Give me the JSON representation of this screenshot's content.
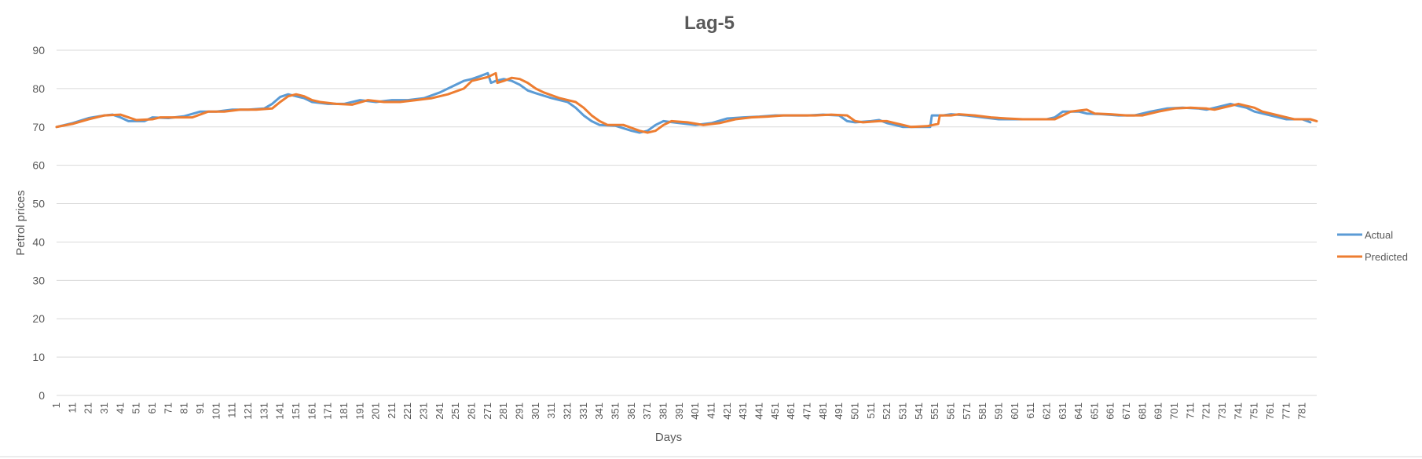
{
  "chart_data": {
    "type": "line",
    "title": "Lag-5",
    "xlabel": "Days",
    "ylabel": "Petrol prices",
    "ylim": [
      0,
      90
    ],
    "yticks": [
      "0",
      "10",
      "20",
      "30",
      "40",
      "50",
      "60",
      "70",
      "80",
      "90"
    ],
    "x_range": [
      1,
      786
    ],
    "xticks": [
      "1",
      "11",
      "21",
      "31",
      "41",
      "51",
      "61",
      "71",
      "81",
      "91",
      "101",
      "111",
      "121",
      "131",
      "141",
      "151",
      "161",
      "171",
      "181",
      "191",
      "201",
      "211",
      "221",
      "231",
      "241",
      "251",
      "261",
      "271",
      "281",
      "291",
      "301",
      "311",
      "321",
      "331",
      "341",
      "351",
      "361",
      "371",
      "381",
      "391",
      "401",
      "411",
      "421",
      "431",
      "441",
      "451",
      "461",
      "471",
      "481",
      "491",
      "501",
      "511",
      "521",
      "531",
      "541",
      "551",
      "561",
      "571",
      "581",
      "591",
      "601",
      "611",
      "621",
      "631",
      "641",
      "651",
      "661",
      "671",
      "681",
      "691",
      "701",
      "711",
      "721",
      "731",
      "741",
      "751",
      "761",
      "771",
      "781"
    ],
    "grid": true,
    "legend_position": "right",
    "series": [
      {
        "name": "Actual",
        "color": "#5B9BD5",
        "points": [
          [
            1,
            70
          ],
          [
            11,
            71
          ],
          [
            21,
            72.3
          ],
          [
            31,
            73
          ],
          [
            36,
            73.2
          ],
          [
            41,
            72.5
          ],
          [
            46,
            71.5
          ],
          [
            56,
            71.5
          ],
          [
            61,
            72.5
          ],
          [
            71,
            72.3
          ],
          [
            81,
            72.8
          ],
          [
            91,
            74
          ],
          [
            101,
            74
          ],
          [
            111,
            74.5
          ],
          [
            121,
            74.5
          ],
          [
            131,
            74.8
          ],
          [
            136,
            76
          ],
          [
            141,
            77.8
          ],
          [
            146,
            78.5
          ],
          [
            151,
            78
          ],
          [
            156,
            77.5
          ],
          [
            161,
            76.5
          ],
          [
            171,
            76
          ],
          [
            181,
            76
          ],
          [
            191,
            77
          ],
          [
            201,
            76.5
          ],
          [
            211,
            77
          ],
          [
            221,
            77
          ],
          [
            231,
            77.5
          ],
          [
            241,
            79
          ],
          [
            251,
            81
          ],
          [
            256,
            82
          ],
          [
            261,
            82.5
          ],
          [
            266,
            83.2
          ],
          [
            271,
            84
          ],
          [
            273,
            81.5
          ],
          [
            276,
            82
          ],
          [
            281,
            82.5
          ],
          [
            286,
            82
          ],
          [
            291,
            81
          ],
          [
            296,
            79.5
          ],
          [
            301,
            78.8
          ],
          [
            311,
            77.5
          ],
          [
            321,
            76.5
          ],
          [
            326,
            75
          ],
          [
            331,
            73
          ],
          [
            336,
            71.5
          ],
          [
            341,
            70.5
          ],
          [
            351,
            70.3
          ],
          [
            361,
            69
          ],
          [
            366,
            68.5
          ],
          [
            371,
            69
          ],
          [
            376,
            70.5
          ],
          [
            381,
            71.5
          ],
          [
            391,
            71
          ],
          [
            401,
            70.5
          ],
          [
            411,
            71
          ],
          [
            421,
            72.2
          ],
          [
            431,
            72.5
          ],
          [
            441,
            72.7
          ],
          [
            451,
            73
          ],
          [
            461,
            73
          ],
          [
            471,
            73
          ],
          [
            481,
            73.2
          ],
          [
            491,
            73
          ],
          [
            496,
            71.5
          ],
          [
            501,
            71.2
          ],
          [
            511,
            71.5
          ],
          [
            516,
            71.8
          ],
          [
            521,
            71
          ],
          [
            526,
            70.5
          ],
          [
            531,
            70
          ],
          [
            541,
            70
          ],
          [
            548,
            70
          ],
          [
            549,
            73
          ],
          [
            556,
            73
          ],
          [
            561,
            73.3
          ],
          [
            571,
            73
          ],
          [
            581,
            72.5
          ],
          [
            591,
            72
          ],
          [
            601,
            72
          ],
          [
            611,
            72
          ],
          [
            621,
            72
          ],
          [
            626,
            72.5
          ],
          [
            631,
            74
          ],
          [
            641,
            74
          ],
          [
            646,
            73.5
          ],
          [
            656,
            73.3
          ],
          [
            666,
            73
          ],
          [
            676,
            73
          ],
          [
            686,
            74
          ],
          [
            696,
            74.8
          ],
          [
            706,
            75
          ],
          [
            716,
            74.8
          ],
          [
            721,
            74.5
          ],
          [
            731,
            75.5
          ],
          [
            736,
            76
          ],
          [
            741,
            75.5
          ],
          [
            746,
            75
          ],
          [
            751,
            74
          ],
          [
            761,
            73
          ],
          [
            766,
            72.5
          ],
          [
            771,
            72
          ],
          [
            781,
            72
          ],
          [
            786,
            71.2
          ]
        ]
      },
      {
        "name": "Predicted",
        "color": "#ED7D31",
        "points": [
          [
            1,
            70
          ],
          [
            11,
            70.8
          ],
          [
            21,
            72
          ],
          [
            31,
            73
          ],
          [
            41,
            73.2
          ],
          [
            46,
            72.5
          ],
          [
            51,
            71.8
          ],
          [
            61,
            72
          ],
          [
            66,
            72.5
          ],
          [
            76,
            72.5
          ],
          [
            86,
            72.5
          ],
          [
            96,
            74
          ],
          [
            106,
            74
          ],
          [
            116,
            74.5
          ],
          [
            126,
            74.5
          ],
          [
            136,
            74.8
          ],
          [
            141,
            76.5
          ],
          [
            146,
            78
          ],
          [
            151,
            78.5
          ],
          [
            156,
            78
          ],
          [
            161,
            77
          ],
          [
            166,
            76.5
          ],
          [
            176,
            76
          ],
          [
            186,
            75.8
          ],
          [
            196,
            77
          ],
          [
            206,
            76.5
          ],
          [
            216,
            76.5
          ],
          [
            226,
            77
          ],
          [
            236,
            77.5
          ],
          [
            246,
            78.5
          ],
          [
            256,
            80
          ],
          [
            261,
            82
          ],
          [
            266,
            82.5
          ],
          [
            271,
            83
          ],
          [
            276,
            84
          ],
          [
            277,
            81.5
          ],
          [
            281,
            82
          ],
          [
            286,
            82.8
          ],
          [
            291,
            82.5
          ],
          [
            296,
            81.5
          ],
          [
            301,
            80
          ],
          [
            306,
            79
          ],
          [
            316,
            77.5
          ],
          [
            326,
            76.5
          ],
          [
            331,
            75
          ],
          [
            336,
            73
          ],
          [
            341,
            71.5
          ],
          [
            346,
            70.5
          ],
          [
            356,
            70.5
          ],
          [
            366,
            69
          ],
          [
            371,
            68.5
          ],
          [
            376,
            69
          ],
          [
            381,
            70.5
          ],
          [
            386,
            71.5
          ],
          [
            396,
            71.2
          ],
          [
            406,
            70.5
          ],
          [
            416,
            71
          ],
          [
            426,
            72
          ],
          [
            436,
            72.5
          ],
          [
            446,
            72.7
          ],
          [
            456,
            73
          ],
          [
            466,
            73
          ],
          [
            476,
            73
          ],
          [
            486,
            73.2
          ],
          [
            496,
            73
          ],
          [
            501,
            71.5
          ],
          [
            506,
            71.2
          ],
          [
            516,
            71.5
          ],
          [
            521,
            71.5
          ],
          [
            526,
            71
          ],
          [
            531,
            70.5
          ],
          [
            536,
            70
          ],
          [
            546,
            70.2
          ],
          [
            553,
            70.8
          ],
          [
            554,
            73
          ],
          [
            561,
            73
          ],
          [
            566,
            73.3
          ],
          [
            576,
            73
          ],
          [
            586,
            72.5
          ],
          [
            596,
            72.2
          ],
          [
            606,
            72
          ],
          [
            616,
            72
          ],
          [
            626,
            72
          ],
          [
            631,
            73
          ],
          [
            636,
            74
          ],
          [
            646,
            74.5
          ],
          [
            651,
            73.5
          ],
          [
            661,
            73.3
          ],
          [
            671,
            73
          ],
          [
            681,
            73
          ],
          [
            691,
            74
          ],
          [
            701,
            74.8
          ],
          [
            711,
            75
          ],
          [
            721,
            74.8
          ],
          [
            726,
            74.5
          ],
          [
            736,
            75.5
          ],
          [
            741,
            76
          ],
          [
            746,
            75.5
          ],
          [
            751,
            75
          ],
          [
            756,
            74
          ],
          [
            766,
            73
          ],
          [
            771,
            72.5
          ],
          [
            776,
            72
          ],
          [
            786,
            72
          ],
          [
            790,
            71.5
          ]
        ]
      }
    ]
  }
}
